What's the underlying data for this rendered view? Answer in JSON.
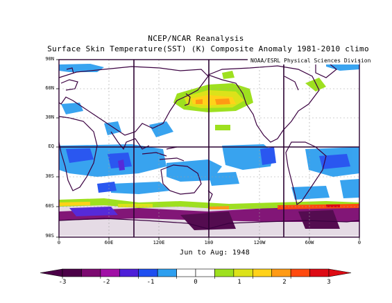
{
  "title": "NCEP/NCAR Reanalysis",
  "subtitle": "Surface Skin Temperature(SST) (K) Composite Anomaly 1981-2010 climo",
  "credit": "NOAA/ESRL Physical Sciences Division",
  "period": "Jun to Aug: 1948",
  "lat_labels": [
    "90N",
    "60N",
    "30N",
    "EQ",
    "30S",
    "60S",
    "90S"
  ],
  "lon_labels": [
    "0",
    "60E",
    "120E",
    "180",
    "120W",
    "60W",
    "0"
  ],
  "colorbar": {
    "labels": [
      "-3",
      "-2",
      "-1",
      "0",
      "1",
      "2",
      "3"
    ],
    "colors": [
      "#4b0047",
      "#7c0a70",
      "#a00fa5",
      "#4e1fd8",
      "#1f4ff0",
      "#2e9fef",
      "#ffffff",
      "#ffffff",
      "#9ee01f",
      "#dce21a",
      "#ffd21a",
      "#ff9a14",
      "#ff4a0f",
      "#dd0a14"
    ]
  },
  "colors": {
    "coast": "#3a0040",
    "grid": "#a0a0a0",
    "frame": "#2a0030"
  }
}
